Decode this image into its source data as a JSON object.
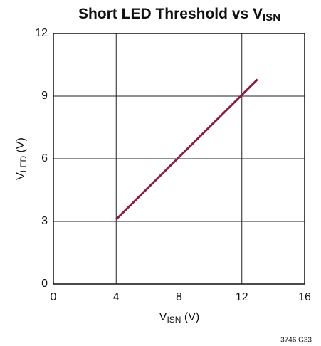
{
  "chart_data": {
    "type": "line",
    "title": {
      "text": "Short LED Threshold vs V",
      "subscript": "ISN"
    },
    "xlabel": {
      "text": "V",
      "subscript": "ISN",
      "unit": " (V)"
    },
    "ylabel": {
      "text": "V",
      "subscript": "LED",
      "unit": " (V)"
    },
    "note": "3746 G33",
    "x": [
      4,
      13
    ],
    "series": [
      {
        "color": "#8c1d40",
        "values": [
          3.1,
          9.8
        ]
      }
    ],
    "xlim": [
      0,
      16
    ],
    "xticks": [
      0,
      4,
      8,
      12,
      16
    ],
    "ylim": [
      0,
      12
    ],
    "yticks": [
      0,
      3,
      6,
      9,
      12
    ],
    "grid": true
  }
}
